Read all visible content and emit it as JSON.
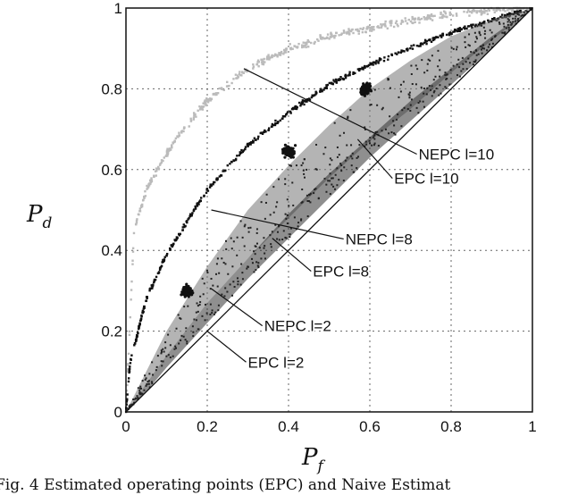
{
  "chart_data": {
    "type": "scatter",
    "title": "",
    "xlabel": "P_f",
    "ylabel": "P_d",
    "xlabel_main": "P",
    "xlabel_sub": "f",
    "ylabel_main": "P",
    "ylabel_sub": "d",
    "xlim": [
      0,
      1
    ],
    "ylim": [
      0,
      1
    ],
    "xticks": [
      "0",
      "0.2",
      "0.4",
      "0.6",
      "0.8",
      "1"
    ],
    "yticks": [
      "0",
      "0.2",
      "0.4",
      "0.6",
      "0.8",
      "1"
    ],
    "grid": true,
    "legend": "none",
    "series": [
      {
        "kind": "curve",
        "color": "#bbbbbb",
        "x": [
          0,
          0.02,
          0.05,
          0.1,
          0.15,
          0.2,
          0.3,
          0.4,
          0.5,
          0.6,
          0.7,
          0.8,
          0.9,
          1.0
        ],
        "y": [
          0,
          0.45,
          0.55,
          0.64,
          0.71,
          0.77,
          0.85,
          0.9,
          0.93,
          0.95,
          0.97,
          0.985,
          0.995,
          1.0
        ]
      },
      {
        "kind": "curve",
        "color": "#111111",
        "x": [
          0,
          0.01,
          0.05,
          0.1,
          0.15,
          0.2,
          0.3,
          0.4,
          0.5,
          0.6,
          0.7,
          0.8,
          0.9,
          1.0
        ],
        "y": [
          0,
          0.12,
          0.28,
          0.39,
          0.47,
          0.55,
          0.66,
          0.74,
          0.81,
          0.86,
          0.9,
          0.94,
          0.97,
          1.0
        ]
      },
      {
        "kind": "band",
        "color": "#777777",
        "x": [
          0,
          0.05,
          0.1,
          0.2,
          0.3,
          0.4,
          0.5,
          0.6,
          0.7,
          0.8,
          0.9,
          1.0
        ],
        "y_low": [
          0,
          0.07,
          0.14,
          0.27,
          0.38,
          0.48,
          0.58,
          0.67,
          0.75,
          0.84,
          0.92,
          1.0
        ],
        "y_high": [
          0,
          0.1,
          0.2,
          0.36,
          0.5,
          0.61,
          0.71,
          0.8,
          0.87,
          0.93,
          0.97,
          1.0
        ]
      },
      {
        "kind": "band",
        "color": "#333333",
        "x": [
          0,
          0.05,
          0.1,
          0.2,
          0.3,
          0.4,
          0.5,
          0.6,
          0.7,
          0.8,
          0.9,
          1.0
        ],
        "y_low": [
          0,
          0.05,
          0.11,
          0.22,
          0.33,
          0.43,
          0.53,
          0.63,
          0.72,
          0.81,
          0.9,
          1.0
        ],
        "y_high": [
          0,
          0.07,
          0.14,
          0.27,
          0.38,
          0.49,
          0.59,
          0.68,
          0.77,
          0.85,
          0.93,
          1.0
        ]
      },
      {
        "kind": "cluster",
        "color": "#111111",
        "points": [
          [
            0.15,
            0.3
          ],
          [
            0.4,
            0.645
          ],
          [
            0.59,
            0.8
          ]
        ]
      },
      {
        "kind": "diagonal",
        "color": "#111111",
        "x": [
          0,
          1
        ],
        "y": [
          0,
          1
        ]
      }
    ],
    "annotations": [
      {
        "text": "NEPC l=10",
        "label_x": 0.72,
        "label_y": 0.625,
        "point_x": 0.29,
        "point_y": 0.85
      },
      {
        "text": "EPC l=10",
        "label_x": 0.66,
        "label_y": 0.565,
        "point_x": 0.57,
        "point_y": 0.675
      },
      {
        "text": "NEPC l=8",
        "label_x": 0.54,
        "label_y": 0.415,
        "point_x": 0.21,
        "point_y": 0.5
      },
      {
        "text": "EPC l=8",
        "label_x": 0.46,
        "label_y": 0.335,
        "point_x": 0.36,
        "point_y": 0.43
      },
      {
        "text": "NEPC l=2",
        "label_x": 0.34,
        "label_y": 0.2,
        "point_x": 0.21,
        "point_y": 0.305
      },
      {
        "text": "EPC l=2",
        "label_x": 0.3,
        "label_y": 0.11,
        "point_x": 0.2,
        "point_y": 0.2
      }
    ]
  },
  "caption": "Fig. 4   Estimated operating points (EPC) and Naive Estimat"
}
